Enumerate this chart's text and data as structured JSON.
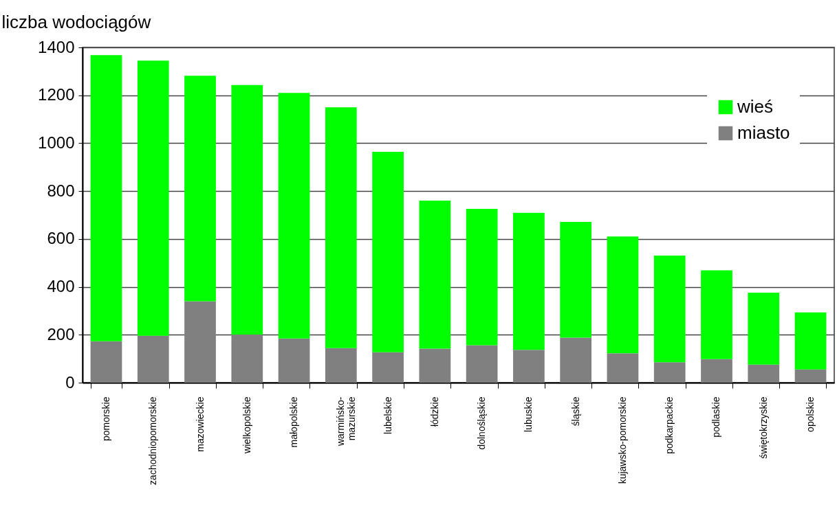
{
  "chart_data": {
    "type": "bar",
    "stacked": true,
    "ylabel": "liczba wodociągów",
    "categories": [
      "pomorskie",
      "zachodniopomorskie",
      "mazowieckie",
      "wielkopolskie",
      "małopolskie",
      "warmińsko-mazurskie",
      "lubelskie",
      "łódzkie",
      "dolnośląskie",
      "lubuskie",
      "śląskie",
      "kujawsko-pomorskie",
      "podkarpackie",
      "podlaskie",
      "świętokrzyskie",
      "opolskie"
    ],
    "series": [
      {
        "name": "miasto",
        "color": "#808080",
        "values": [
          173,
          196,
          340,
          201,
          184,
          144,
          127,
          142,
          156,
          137,
          188,
          123,
          85,
          98,
          75,
          55
        ]
      },
      {
        "name": "wieś",
        "color": "#00ff00",
        "values": [
          1195,
          1149,
          942,
          1042,
          1026,
          1006,
          837,
          618,
          570,
          572,
          483,
          487,
          446,
          371,
          301,
          238
        ]
      }
    ],
    "ylim": [
      0,
      1400
    ],
    "yticks": [
      0,
      200,
      400,
      600,
      800,
      1000,
      1200,
      1400
    ],
    "grid": "y",
    "legend": "top right"
  }
}
